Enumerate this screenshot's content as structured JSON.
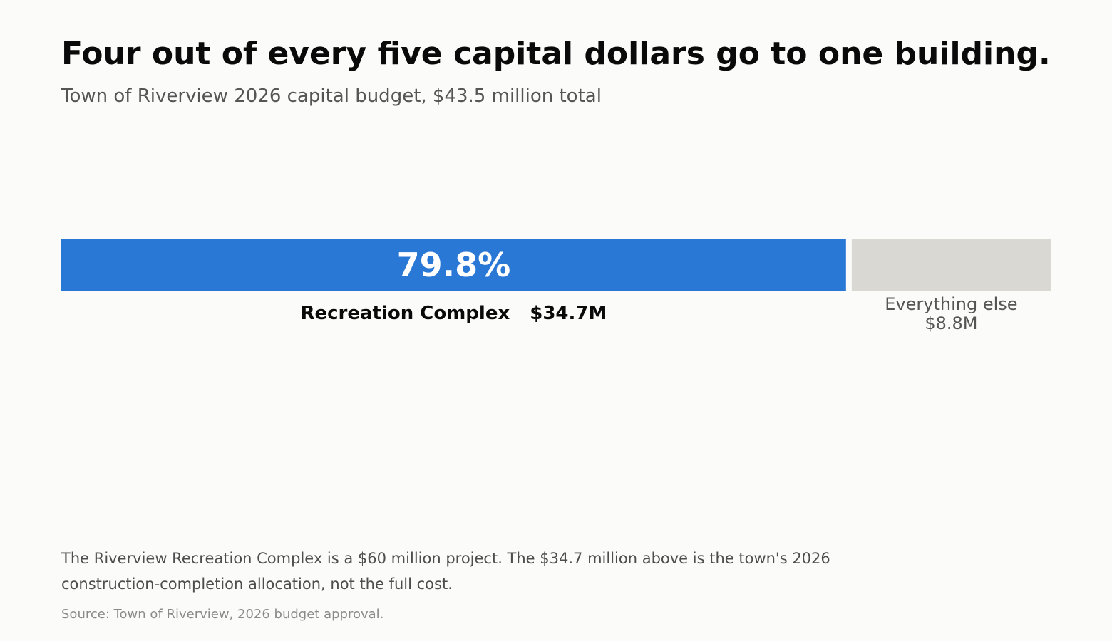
{
  "header": {
    "title": "Four out of every five capital dollars go to one building.",
    "subtitle": "Town of Riverview 2026 capital budget, $43.5 million total"
  },
  "chart_data": {
    "type": "bar",
    "orientation": "stacked-horizontal",
    "total": 43.5,
    "unit": "$M",
    "segments": [
      {
        "name": "Recreation Complex",
        "value": 34.7,
        "value_label": "$34.7M",
        "percent_label": "79.8%",
        "color": "#2a78d6"
      },
      {
        "name": "Everything else",
        "value": 8.8,
        "value_label": "$8.8M",
        "color": "#d9d8d3"
      }
    ]
  },
  "footer": {
    "note": "The Riverview Recreation Complex is a $60 million project. The $34.7 million above is the town's 2026 construction-completion allocation, not the full cost.",
    "source": "Source: Town of Riverview, 2026 budget approval."
  }
}
